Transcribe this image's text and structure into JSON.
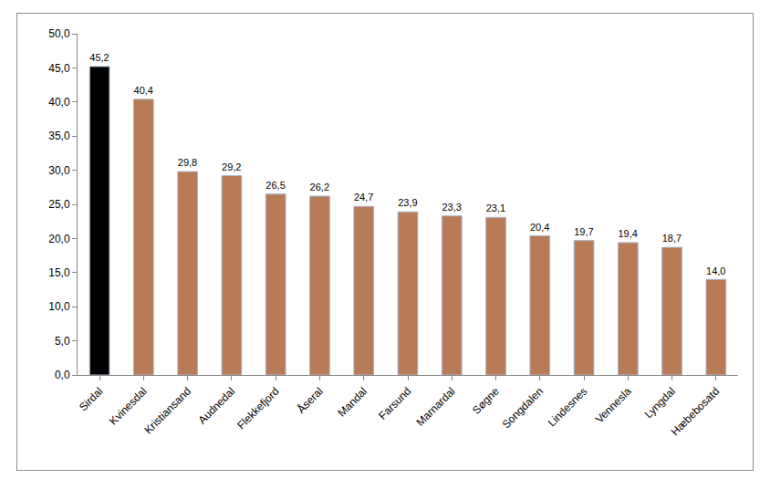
{
  "chart_data": {
    "type": "bar",
    "categories": [
      "Sirdal",
      "Kvinesdal",
      "Kristiansand",
      "Audnedal",
      "Flekkefjord",
      "Åseral",
      "Mandal",
      "Farsund",
      "Marnardal",
      "Søgne",
      "Songdalen",
      "Lindesnes",
      "Vennesla",
      "Lyngdal",
      "Hæbebosatd"
    ],
    "values": [
      45.2,
      40.4,
      29.8,
      29.2,
      26.5,
      26.2,
      24.7,
      23.9,
      23.3,
      23.1,
      20.4,
      19.7,
      19.4,
      18.7,
      14.0
    ],
    "value_labels": [
      "45,2",
      "40,4",
      "29,8",
      "29,2",
      "26,5",
      "26,2",
      "24,7",
      "23,9",
      "23,3",
      "23,1",
      "20,4",
      "19,7",
      "19,4",
      "18,7",
      "14,0"
    ],
    "colors": [
      "#000000",
      "#b97a56",
      "#b97a56",
      "#b97a56",
      "#b97a56",
      "#b97a56",
      "#b97a56",
      "#b97a56",
      "#b97a56",
      "#b97a56",
      "#b97a56",
      "#b97a56",
      "#b97a56",
      "#b97a56",
      "#b97a56"
    ],
    "ylim": [
      0,
      50
    ],
    "yticks": [
      {
        "value": 0,
        "label": "0,0"
      },
      {
        "value": 5,
        "label": "5,0"
      },
      {
        "value": 10,
        "label": "10,0"
      },
      {
        "value": 15,
        "label": "15,0"
      },
      {
        "value": 20,
        "label": "20,0"
      },
      {
        "value": 25,
        "label": "25,0"
      },
      {
        "value": 30,
        "label": "30,0"
      },
      {
        "value": 35,
        "label": "35,0"
      },
      {
        "value": 40,
        "label": "40,0"
      },
      {
        "value": 45,
        "label": "45,0"
      },
      {
        "value": 50,
        "label": "50,0"
      }
    ],
    "grid": false,
    "data_labels": true
  }
}
